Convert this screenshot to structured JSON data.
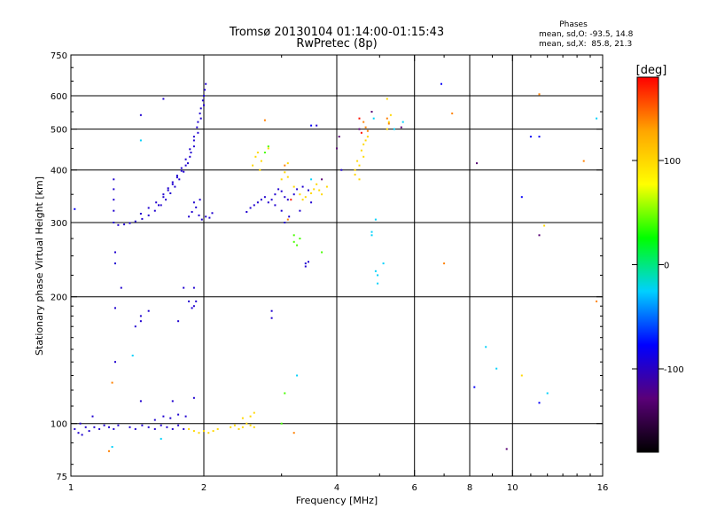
{
  "chart_data": {
    "type": "scatter",
    "title": "Tromsø 20130104 01:14:00-01:15:43",
    "subtitle": "RwPretec (8p)",
    "xlabel": "Frequency [MHz]",
    "ylabel": "Stationary phase Virtual Height [km]",
    "x_scale": "log",
    "y_scale": "log",
    "xlim": [
      1,
      16
    ],
    "ylim": [
      75,
      750
    ],
    "x_ticks": [
      1,
      2,
      4,
      6,
      8,
      10,
      16
    ],
    "x_tick_labels": [
      "1",
      "2",
      "4",
      "6",
      "8",
      "10",
      "16"
    ],
    "y_ticks": [
      75,
      100,
      200,
      300,
      400,
      500,
      600,
      750
    ],
    "y_tick_labels": [
      "75",
      "100",
      "200",
      "300",
      "400",
      "500",
      "600",
      "750"
    ],
    "grid": true,
    "stats": {
      "heading": "Phases",
      "line_o": "mean, sd,O: -93.5, 14.8",
      "line_x": "mean, sd,X:  85.8, 21.3"
    },
    "colorbar": {
      "label": "[deg]",
      "range": [
        -180,
        180
      ],
      "tick_values": [
        100,
        0,
        -100
      ],
      "tick_labels": [
        "100",
        "0",
        "-100"
      ],
      "colors": [
        "#000000",
        "#5a0078",
        "#0000ff",
        "#00d0ff",
        "#00ff00",
        "#ffff00",
        "#ffa500",
        "#ff0000"
      ]
    },
    "series": [
      {
        "color_value": -95,
        "points": [
          [
            1.02,
            97
          ],
          [
            1.04,
            95
          ],
          [
            1.06,
            94
          ],
          [
            1.08,
            98
          ],
          [
            1.1,
            96
          ],
          [
            1.13,
            98
          ],
          [
            1.16,
            97
          ],
          [
            1.19,
            99
          ],
          [
            1.22,
            98
          ],
          [
            1.25,
            97
          ],
          [
            1.28,
            99
          ],
          [
            1.36,
            98
          ],
          [
            1.4,
            97
          ],
          [
            1.45,
            99
          ],
          [
            1.5,
            98
          ],
          [
            1.55,
            97
          ],
          [
            1.6,
            99
          ],
          [
            1.65,
            98
          ],
          [
            1.7,
            97
          ],
          [
            1.75,
            99
          ],
          [
            1.8,
            97
          ],
          [
            1.05,
            100
          ],
          [
            1.12,
            104
          ],
          [
            1.55,
            102
          ],
          [
            1.62,
            104
          ],
          [
            1.68,
            103
          ],
          [
            1.75,
            105
          ],
          [
            1.82,
            104
          ],
          [
            1.28,
            296
          ],
          [
            1.32,
            297
          ],
          [
            1.36,
            299
          ],
          [
            1.4,
            302
          ],
          [
            1.45,
            306
          ],
          [
            1.5,
            312
          ],
          [
            1.55,
            320
          ],
          [
            1.6,
            330
          ],
          [
            1.64,
            340
          ],
          [
            1.68,
            352
          ],
          [
            1.72,
            365
          ],
          [
            1.76,
            380
          ],
          [
            1.8,
            396
          ],
          [
            1.84,
            415
          ],
          [
            1.87,
            440
          ],
          [
            1.9,
            470
          ],
          [
            1.93,
            505
          ],
          [
            1.96,
            545
          ],
          [
            1.99,
            585
          ],
          [
            2.01,
            620
          ],
          [
            1.44,
            315
          ],
          [
            1.5,
            325
          ],
          [
            1.56,
            335
          ],
          [
            1.62,
            350
          ],
          [
            1.66,
            362
          ],
          [
            1.7,
            374
          ],
          [
            1.74,
            388
          ],
          [
            1.78,
            404
          ],
          [
            1.82,
            424
          ],
          [
            1.86,
            448
          ],
          [
            1.9,
            480
          ],
          [
            1.94,
            520
          ],
          [
            1.97,
            560
          ],
          [
            2.0,
            600
          ],
          [
            1.58,
            330
          ],
          [
            1.62,
            345
          ],
          [
            1.66,
            358
          ],
          [
            1.7,
            370
          ],
          [
            1.74,
            384
          ],
          [
            1.78,
            398
          ],
          [
            1.82,
            410
          ],
          [
            1.86,
            430
          ],
          [
            1.9,
            455
          ],
          [
            1.94,
            490
          ],
          [
            1.97,
            530
          ],
          [
            2.0,
            570
          ],
          [
            2.02,
            640
          ],
          [
            1.85,
            310
          ],
          [
            1.88,
            318
          ],
          [
            1.92,
            326
          ],
          [
            1.95,
            312
          ],
          [
            1.98,
            305
          ],
          [
            2.02,
            310
          ],
          [
            2.06,
            308
          ],
          [
            2.09,
            316
          ],
          [
            1.9,
            335
          ],
          [
            1.96,
            340
          ],
          [
            2.5,
            318
          ],
          [
            2.55,
            325
          ],
          [
            2.6,
            330
          ],
          [
            2.65,
            335
          ],
          [
            2.7,
            340
          ],
          [
            2.75,
            345
          ],
          [
            2.8,
            335
          ],
          [
            2.85,
            340
          ],
          [
            2.9,
            350
          ],
          [
            2.95,
            360
          ],
          [
            3.0,
            356
          ],
          [
            3.05,
            345
          ],
          [
            3.1,
            340
          ],
          [
            3.2,
            350
          ],
          [
            3.25,
            360
          ],
          [
            3.35,
            365
          ],
          [
            3.45,
            358
          ],
          [
            1.25,
            380
          ],
          [
            1.25,
            360
          ],
          [
            1.25,
            340
          ],
          [
            1.25,
            320
          ],
          [
            1.25,
            300
          ],
          [
            1.26,
            255
          ],
          [
            1.26,
            240
          ],
          [
            1.26,
            188
          ],
          [
            1.26,
            140
          ],
          [
            1.3,
            210
          ],
          [
            1.4,
            170
          ],
          [
            1.44,
            180
          ],
          [
            1.44,
            175
          ],
          [
            1.5,
            185
          ],
          [
            1.44,
            113
          ],
          [
            1.7,
            113
          ],
          [
            1.75,
            175
          ],
          [
            1.85,
            195
          ],
          [
            1.88,
            188
          ],
          [
            1.9,
            190
          ],
          [
            1.92,
            195
          ],
          [
            1.8,
            210
          ],
          [
            1.9,
            210
          ],
          [
            2.85,
            185
          ],
          [
            2.85,
            178
          ],
          [
            3.4,
            240
          ],
          [
            3.45,
            242
          ],
          [
            3.4,
            236
          ],
          [
            1.44,
            540
          ],
          [
            1.62,
            590
          ],
          [
            1.9,
            115
          ],
          [
            2.9,
            330
          ],
          [
            3.0,
            320
          ],
          [
            3.05,
            300
          ],
          [
            3.12,
            310
          ],
          [
            3.3,
            320
          ],
          [
            3.5,
            335
          ],
          [
            4.1,
            400
          ],
          [
            3.6,
            510
          ]
        ]
      },
      {
        "color_value": -130,
        "points": [
          [
            3.7,
            380
          ],
          [
            4.0,
            450
          ],
          [
            4.05,
            480
          ],
          [
            4.8,
            550
          ],
          [
            4.5,
            500
          ],
          [
            8.3,
            415
          ],
          [
            9.7,
            87
          ],
          [
            11.5,
            280
          ],
          [
            5.6,
            505
          ]
        ]
      },
      {
        "color_value": 100,
        "points": [
          [
            1.85,
            97
          ],
          [
            1.9,
            96
          ],
          [
            1.95,
            95
          ],
          [
            2.0,
            96
          ],
          [
            2.05,
            95
          ],
          [
            2.1,
            96
          ],
          [
            2.15,
            97
          ],
          [
            2.3,
            98
          ],
          [
            2.35,
            99
          ],
          [
            2.4,
            97
          ],
          [
            2.45,
            98
          ],
          [
            2.5,
            100
          ],
          [
            2.55,
            99
          ],
          [
            2.6,
            98
          ],
          [
            2.45,
            103
          ],
          [
            2.6,
            106
          ],
          [
            2.55,
            104
          ],
          [
            2.58,
            410
          ],
          [
            2.62,
            430
          ],
          [
            2.65,
            440
          ],
          [
            2.7,
            420
          ],
          [
            2.68,
            400
          ],
          [
            2.8,
            450
          ],
          [
            3.0,
            380
          ],
          [
            3.05,
            395
          ],
          [
            3.1,
            385
          ],
          [
            3.2,
            365
          ],
          [
            3.3,
            350
          ],
          [
            3.35,
            340
          ],
          [
            3.4,
            345
          ],
          [
            3.5,
            352
          ],
          [
            3.55,
            360
          ],
          [
            3.6,
            370
          ],
          [
            3.65,
            358
          ],
          [
            3.7,
            350
          ],
          [
            3.8,
            365
          ],
          [
            4.4,
            400
          ],
          [
            4.45,
            420
          ],
          [
            4.5,
            410
          ],
          [
            4.55,
            445
          ],
          [
            4.6,
            460
          ],
          [
            4.65,
            470
          ],
          [
            4.7,
            480
          ],
          [
            4.4,
            390
          ],
          [
            4.5,
            380
          ],
          [
            4.6,
            430
          ],
          [
            5.2,
            500
          ],
          [
            5.25,
            520
          ],
          [
            5.3,
            540
          ],
          [
            11.8,
            295
          ],
          [
            10.5,
            130
          ],
          [
            3.1,
            415
          ],
          [
            5.2,
            590
          ]
        ]
      },
      {
        "color_value": 40,
        "points": [
          [
            2.75,
            440
          ],
          [
            2.8,
            455
          ],
          [
            3.2,
            280
          ],
          [
            3.2,
            270
          ],
          [
            3.25,
            265
          ],
          [
            3.3,
            275
          ],
          [
            3.7,
            255
          ],
          [
            3.0,
            100
          ],
          [
            3.05,
            118
          ]
        ]
      },
      {
        "color_value": 140,
        "points": [
          [
            2.75,
            525
          ],
          [
            3.05,
            410
          ],
          [
            4.6,
            520
          ],
          [
            4.65,
            505
          ],
          [
            4.7,
            495
          ],
          [
            5.2,
            530
          ],
          [
            5.25,
            515
          ],
          [
            7.3,
            545
          ],
          [
            7.0,
            240
          ],
          [
            14.5,
            420
          ],
          [
            15.5,
            195
          ],
          [
            11.5,
            605
          ],
          [
            3.1,
            305
          ],
          [
            1.22,
            86
          ],
          [
            3.2,
            95
          ],
          [
            1.24,
            125
          ]
        ]
      },
      {
        "color_value": 175,
        "points": [
          [
            3.15,
            340
          ],
          [
            4.5,
            530
          ],
          [
            4.55,
            490
          ]
        ]
      },
      {
        "color_value": -25,
        "points": [
          [
            5.4,
            500
          ],
          [
            5.65,
            520
          ],
          [
            4.9,
            305
          ],
          [
            4.8,
            285
          ],
          [
            4.8,
            280
          ],
          [
            5.1,
            240
          ],
          [
            4.95,
            225
          ],
          [
            4.9,
            230
          ],
          [
            4.95,
            215
          ],
          [
            1.24,
            88
          ],
          [
            1.6,
            92
          ],
          [
            3.25,
            130
          ],
          [
            8.7,
            152
          ],
          [
            9.2,
            135
          ],
          [
            12.0,
            118
          ],
          [
            15.5,
            530
          ],
          [
            1.38,
            145
          ],
          [
            3.5,
            380
          ],
          [
            1.44,
            470
          ],
          [
            4.85,
            530
          ]
        ]
      },
      {
        "color_value": -80,
        "points": [
          [
            6.9,
            640
          ],
          [
            11.0,
            480
          ],
          [
            11.5,
            480
          ],
          [
            10.5,
            345
          ],
          [
            11.5,
            112
          ],
          [
            8.2,
            122
          ],
          [
            1.02,
            323
          ],
          [
            3.5,
            510
          ]
        ]
      }
    ]
  }
}
